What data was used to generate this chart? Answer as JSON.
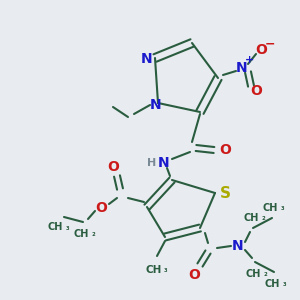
{
  "bg_color": "#e8ecf0",
  "bond_color": "#2a5c3f",
  "bond_width": 1.5,
  "atoms": {
    "N_blue": "#1a1acc",
    "O_red": "#cc1a1a",
    "S_yellow": "#aaaa00",
    "C_dark": "#2a5c3f",
    "H_gray": "#7a8a96"
  },
  "fig_size": [
    3.0,
    3.0
  ],
  "dpi": 100,
  "xlim": [
    0,
    300
  ],
  "ylim": [
    0,
    300
  ]
}
